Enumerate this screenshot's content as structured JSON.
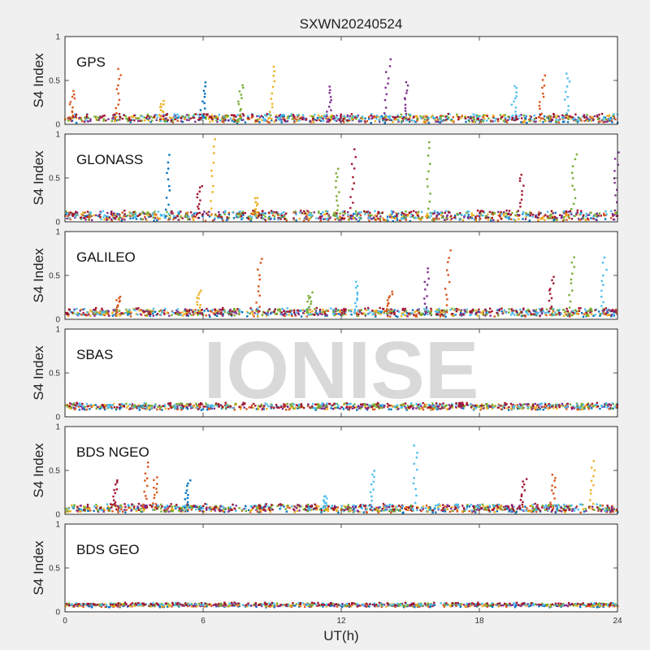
{
  "chart_data": {
    "type": "scatter",
    "title": "SXWN20240524",
    "xlabel": "UT(h)",
    "ylabel": "S4 Index",
    "xlim": [
      0,
      24
    ],
    "ylim": [
      0,
      1
    ],
    "x_ticks": [
      "0",
      "6",
      "12",
      "18",
      "24"
    ],
    "y_ticks": [
      "0",
      "0.5",
      "1"
    ],
    "watermark": "IONISE",
    "colors": [
      "#0072BD",
      "#D95319",
      "#EDB120",
      "#7E2F8E",
      "#77AC30",
      "#4DBEEE",
      "#A2142F"
    ],
    "panels": [
      {
        "label": "GPS",
        "baseline": 0.07,
        "noise": 0.04,
        "spikes": [
          {
            "x": 0.3,
            "peak": 0.38,
            "color": 1
          },
          {
            "x": 2.3,
            "peak": 0.62,
            "color": 1
          },
          {
            "x": 4.2,
            "peak": 0.26,
            "color": 2
          },
          {
            "x": 6.0,
            "peak": 0.48,
            "color": 0
          },
          {
            "x": 7.6,
            "peak": 0.46,
            "color": 4
          },
          {
            "x": 9.0,
            "peak": 0.66,
            "color": 2
          },
          {
            "x": 11.5,
            "peak": 0.42,
            "color": 3
          },
          {
            "x": 14.0,
            "peak": 0.74,
            "color": 3
          },
          {
            "x": 14.8,
            "peak": 0.48,
            "color": 3
          },
          {
            "x": 19.5,
            "peak": 0.45,
            "color": 5
          },
          {
            "x": 20.7,
            "peak": 0.55,
            "color": 1
          },
          {
            "x": 21.8,
            "peak": 0.58,
            "color": 5
          }
        ]
      },
      {
        "label": "GLONASS",
        "baseline": 0.07,
        "noise": 0.05,
        "spikes": [
          {
            "x": 4.5,
            "peak": 0.76,
            "color": 0
          },
          {
            "x": 5.8,
            "peak": 0.42,
            "color": 6
          },
          {
            "x": 6.4,
            "peak": 0.95,
            "color": 2
          },
          {
            "x": 8.3,
            "peak": 0.28,
            "color": 2
          },
          {
            "x": 11.8,
            "peak": 0.62,
            "color": 4
          },
          {
            "x": 12.5,
            "peak": 0.82,
            "color": 6
          },
          {
            "x": 15.8,
            "peak": 0.92,
            "color": 4
          },
          {
            "x": 19.8,
            "peak": 0.55,
            "color": 6
          },
          {
            "x": 22.1,
            "peak": 0.78,
            "color": 4
          },
          {
            "x": 23.9,
            "peak": 0.8,
            "color": 3
          }
        ]
      },
      {
        "label": "GALILEO",
        "baseline": 0.08,
        "noise": 0.04,
        "spikes": [
          {
            "x": 2.3,
            "peak": 0.26,
            "color": 1
          },
          {
            "x": 5.8,
            "peak": 0.33,
            "color": 2
          },
          {
            "x": 8.4,
            "peak": 0.7,
            "color": 1
          },
          {
            "x": 10.6,
            "peak": 0.3,
            "color": 4
          },
          {
            "x": 12.6,
            "peak": 0.42,
            "color": 5
          },
          {
            "x": 14.1,
            "peak": 0.32,
            "color": 1
          },
          {
            "x": 15.7,
            "peak": 0.58,
            "color": 3
          },
          {
            "x": 16.6,
            "peak": 0.78,
            "color": 1
          },
          {
            "x": 21.1,
            "peak": 0.48,
            "color": 6
          },
          {
            "x": 22.0,
            "peak": 0.72,
            "color": 4
          },
          {
            "x": 23.4,
            "peak": 0.7,
            "color": 5
          }
        ]
      },
      {
        "label": "SBAS",
        "baseline": 0.12,
        "noise": 0.03,
        "spikes": []
      },
      {
        "label": "BDS NGEO",
        "baseline": 0.07,
        "noise": 0.04,
        "spikes": [
          {
            "x": 2.2,
            "peak": 0.4,
            "color": 6
          },
          {
            "x": 3.5,
            "peak": 0.58,
            "color": 1
          },
          {
            "x": 3.9,
            "peak": 0.42,
            "color": 1
          },
          {
            "x": 5.3,
            "peak": 0.38,
            "color": 0
          },
          {
            "x": 11.3,
            "peak": 0.22,
            "color": 5
          },
          {
            "x": 13.3,
            "peak": 0.5,
            "color": 5
          },
          {
            "x": 15.2,
            "peak": 0.78,
            "color": 5
          },
          {
            "x": 19.9,
            "peak": 0.4,
            "color": 6
          },
          {
            "x": 21.2,
            "peak": 0.46,
            "color": 1
          },
          {
            "x": 22.9,
            "peak": 0.6,
            "color": 2
          }
        ]
      },
      {
        "label": "BDS GEO",
        "baseline": 0.08,
        "noise": 0.015,
        "spikes": []
      }
    ]
  }
}
